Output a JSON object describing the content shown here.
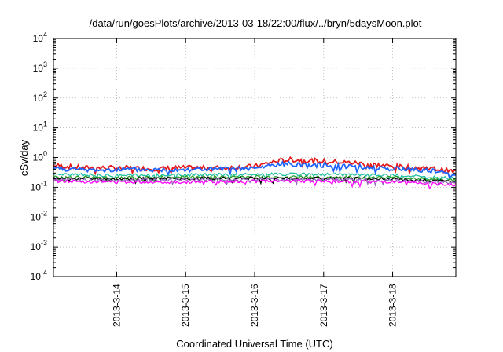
{
  "chart_data": {
    "type": "line",
    "title": "/data/run/goesPlots/archive/2013-03-18/22:00/flux/../bryn/5daysMoon.plot",
    "xlabel": "Coordinated Universal Time (UTC)",
    "ylabel": "cSv/day",
    "yscale": "log",
    "ylim": [
      0.0001,
      10000
    ],
    "ytick_exponents": [
      "-4",
      "-3",
      "-2",
      "-1",
      "0",
      "1",
      "2",
      "3",
      "4"
    ],
    "ytick_base": "10",
    "xlim": [
      "2013-03-13 02:00",
      "2013-03-18 22:00"
    ],
    "xtick_labels": [
      "2013-3-14",
      "2013-3-15",
      "2013-3-16",
      "2013-3-17",
      "2013-3-18"
    ],
    "xtick_dates": [
      "2013-03-14",
      "2013-03-15",
      "2013-03-16",
      "2013-03-17",
      "2013-03-18"
    ],
    "grid": true,
    "series": [
      {
        "color": "#e41a1c",
        "x": [
          "2013-03-13 02:00",
          "2013-03-13 12:00",
          "2013-03-14 00:00",
          "2013-03-14 12:00",
          "2013-03-15 00:00",
          "2013-03-15 12:00",
          "2013-03-16 00:00",
          "2013-03-16 06:00",
          "2013-03-16 12:00",
          "2013-03-16 18:00",
          "2013-03-17 00:00",
          "2013-03-17 12:00",
          "2013-03-18 00:00",
          "2013-03-18 12:00",
          "2013-03-18 22:00"
        ],
        "y": [
          0.55,
          0.45,
          0.45,
          0.42,
          0.45,
          0.45,
          0.5,
          0.7,
          0.85,
          0.8,
          0.75,
          0.65,
          0.5,
          0.45,
          0.33
        ]
      },
      {
        "color": "#1e64ff",
        "x": [
          "2013-03-13 02:00",
          "2013-03-13 12:00",
          "2013-03-14 00:00",
          "2013-03-14 12:00",
          "2013-03-15 00:00",
          "2013-03-15 12:00",
          "2013-03-16 00:00",
          "2013-03-16 06:00",
          "2013-03-16 12:00",
          "2013-03-16 18:00",
          "2013-03-17 00:00",
          "2013-03-17 12:00",
          "2013-03-18 00:00",
          "2013-03-18 12:00",
          "2013-03-18 22:00"
        ],
        "y": [
          0.45,
          0.38,
          0.4,
          0.38,
          0.4,
          0.4,
          0.42,
          0.55,
          0.62,
          0.58,
          0.55,
          0.5,
          0.42,
          0.38,
          0.25
        ]
      },
      {
        "color": "#20c0a0",
        "x": [
          "2013-03-13 02:00",
          "2013-03-14 00:00",
          "2013-03-15 00:00",
          "2013-03-16 00:00",
          "2013-03-17 00:00",
          "2013-03-18 00:00",
          "2013-03-18 22:00"
        ],
        "y": [
          0.27,
          0.25,
          0.26,
          0.27,
          0.27,
          0.25,
          0.2
        ]
      },
      {
        "color": "#2ca02c",
        "x": [
          "2013-03-13 02:00",
          "2013-03-14 00:00",
          "2013-03-15 00:00",
          "2013-03-16 00:00",
          "2013-03-17 00:00",
          "2013-03-18 00:00",
          "2013-03-18 22:00"
        ],
        "y": [
          0.22,
          0.21,
          0.22,
          0.22,
          0.22,
          0.21,
          0.17
        ]
      },
      {
        "color": "#000000",
        "x": [
          "2013-03-13 02:00",
          "2013-03-14 00:00",
          "2013-03-15 00:00",
          "2013-03-16 00:00",
          "2013-03-17 00:00",
          "2013-03-18 00:00",
          "2013-03-18 22:00"
        ],
        "y": [
          0.2,
          0.19,
          0.2,
          0.2,
          0.2,
          0.19,
          0.15
        ]
      },
      {
        "color": "#9467bd",
        "x": [
          "2013-03-13 02:00",
          "2013-03-14 00:00",
          "2013-03-15 00:00",
          "2013-03-16 00:00",
          "2013-03-17 00:00",
          "2013-03-18 00:00",
          "2013-03-18 22:00"
        ],
        "y": [
          0.18,
          0.17,
          0.18,
          0.18,
          0.18,
          0.17,
          0.14
        ]
      },
      {
        "color": "#ff00ff",
        "x": [
          "2013-03-13 02:00",
          "2013-03-14 00:00",
          "2013-03-15 00:00",
          "2013-03-16 00:00",
          "2013-03-17 00:00",
          "2013-03-18 00:00",
          "2013-03-18 22:00"
        ],
        "y": [
          0.16,
          0.15,
          0.15,
          0.16,
          0.16,
          0.15,
          0.12
        ]
      }
    ]
  }
}
